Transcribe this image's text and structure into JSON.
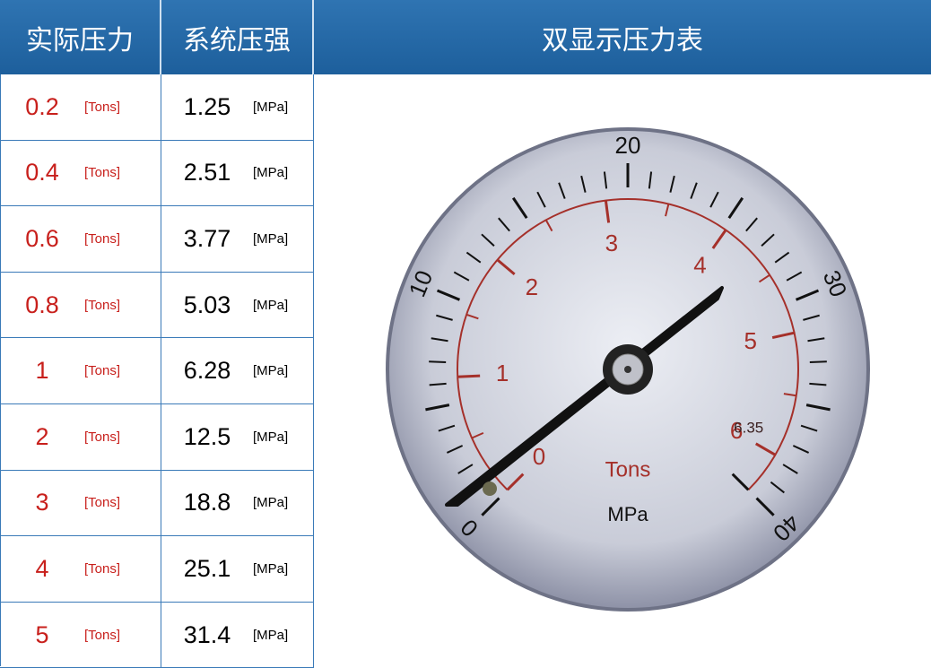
{
  "header": {
    "col1": "实际压力",
    "col2": "系统压强",
    "col3": "双显示压力表"
  },
  "table": {
    "tons_unit": "[Tons]",
    "mpa_unit": "[MPa]",
    "rows": [
      [
        0.2,
        1.25
      ],
      [
        0.4,
        2.51
      ],
      [
        0.6,
        3.77
      ],
      [
        0.8,
        5.03
      ],
      [
        1,
        6.28
      ],
      [
        2,
        12.5
      ],
      [
        3,
        18.8
      ],
      [
        4,
        25.1
      ],
      [
        5,
        31.4
      ]
    ]
  },
  "gauge": {
    "outer_scale": [
      0,
      10,
      20,
      30,
      40
    ],
    "inner_scale": [
      0,
      1,
      2,
      3,
      4,
      5,
      6,
      6.35
    ],
    "unit1": "Tons",
    "unit2": "MPa"
  }
}
